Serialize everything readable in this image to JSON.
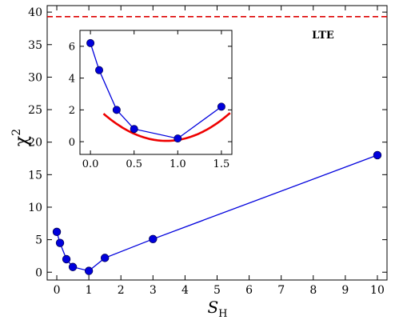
{
  "chart_data": [
    {
      "type": "line",
      "x": [
        0,
        0.1,
        0.3,
        0.5,
        1,
        1.5,
        3,
        10
      ],
      "series": [
        {
          "values": [
            6.2,
            4.5,
            2.0,
            0.8,
            0.2,
            2.2,
            5.1,
            18.0
          ],
          "color": "#0000dd"
        }
      ],
      "reference_line": {
        "y": 39.3,
        "label": "LTE",
        "style": "dashed",
        "color": "#dd0000"
      },
      "xlabel": "S_H",
      "xlabel_main": "S",
      "xlabel_sub": "H",
      "ylabel": "χ²",
      "ylabel_main": "χ",
      "ylabel_sup": "2",
      "xlim": [
        -0.3,
        10.3
      ],
      "ylim": [
        -1.2,
        41
      ],
      "x_ticks": [
        0,
        1,
        2,
        3,
        4,
        5,
        6,
        7,
        8,
        9,
        10
      ],
      "y_ticks": [
        0,
        5,
        10,
        15,
        20,
        25,
        30,
        35,
        40
      ],
      "grid": false
    },
    {
      "type": "line",
      "inset": true,
      "x": [
        0,
        0.1,
        0.3,
        0.5,
        1,
        1.5
      ],
      "series": [
        {
          "values": [
            6.2,
            4.5,
            2.0,
            0.8,
            0.2,
            2.2
          ],
          "color": "#0000dd"
        }
      ],
      "fit_curve": {
        "type": "parabola",
        "vertex_x": 0.87,
        "vertex_y": 0.05,
        "a": 3.3,
        "x_range": [
          0.15,
          1.6
        ],
        "color": "#ee0000"
      },
      "xlim": [
        -0.12,
        1.62
      ],
      "ylim": [
        -0.8,
        7.0
      ],
      "x_ticks": [
        0.0,
        0.5,
        1.0,
        1.5
      ],
      "x_tick_labels": [
        "0.0",
        "0.5",
        "1.0",
        "1.5"
      ],
      "y_ticks": [
        0,
        2,
        4,
        6
      ],
      "grid": false
    }
  ]
}
